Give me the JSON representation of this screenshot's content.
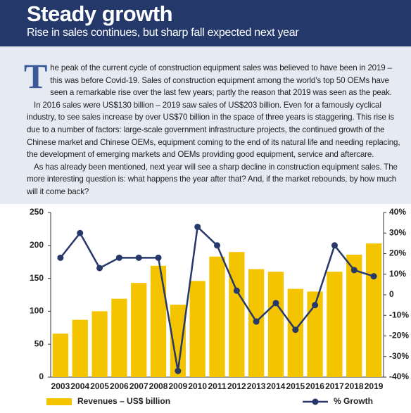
{
  "header": {
    "title": "Steady growth",
    "subtitle": "Rise in sales continues, but sharp fall expected next year"
  },
  "article": {
    "drop_cap": "T",
    "paragraphs": [
      "he peak of the current cycle of construction equipment sales was believed to have been in 2019 – this was before Covid-19. Sales of construction equipment among the world’s top 50 OEMs have seen a remarkable rise over the last few years; partly the reason that 2019 was seen as the peak.",
      "In 2016 sales were US$130 billion – 2019 saw sales of US$203 billion. Even for a famously cyclical industry, to see sales increase by over US$70 billion in the space of three years is staggering. This rise is due to a number of factors: large-scale government infrastructure projects, the continued growth of the Chinese market and Chinese OEMs, equipment coming to the end of its natural life and needing replacing, the development of emerging markets and OEMs providing good equipment, service and aftercare.",
      "As has already been mentioned, next year will see a sharp decline in construction equipment sales. The more interesting question is: what happens the year after that? And, if the market rebounds, by how much will it come back?"
    ]
  },
  "chart_data": {
    "type": "bar",
    "categories": [
      "2003",
      "2004",
      "2005",
      "2006",
      "2007",
      "2008",
      "2009",
      "2010",
      "2011",
      "2012",
      "2013",
      "2014",
      "2015",
      "2016",
      "2017",
      "2018",
      "2019"
    ],
    "series": [
      {
        "name": "Revenues – US$ billion",
        "type": "bar",
        "color": "#f5c400",
        "values": [
          66,
          87,
          100,
          119,
          143,
          169,
          110,
          146,
          183,
          190,
          164,
          160,
          134,
          130,
          160,
          186,
          203
        ]
      },
      {
        "name": "% Growth",
        "type": "line",
        "axis": "y2",
        "color": "#27386b",
        "values": [
          18,
          30,
          13,
          18,
          18,
          18,
          -37,
          33,
          24,
          2,
          -13,
          -4,
          -17,
          -5,
          24,
          12,
          9
        ]
      }
    ],
    "ylim": [
      0,
      250
    ],
    "yticks": [
      0,
      50,
      100,
      150,
      200,
      250
    ],
    "y2lim": [
      -40,
      40
    ],
    "y2ticks": [
      {
        "value": 40,
        "label": "40%"
      },
      {
        "value": 30,
        "label": "30%"
      },
      {
        "value": 20,
        "label": "20%"
      },
      {
        "value": 10,
        "label": "10%"
      },
      0,
      {
        "value": -10,
        "label": "-10%"
      },
      {
        "value": -20,
        "label": "-20%"
      },
      {
        "value": -30,
        "label": "-30%"
      },
      {
        "value": -40,
        "label": "-40%"
      }
    ]
  }
}
